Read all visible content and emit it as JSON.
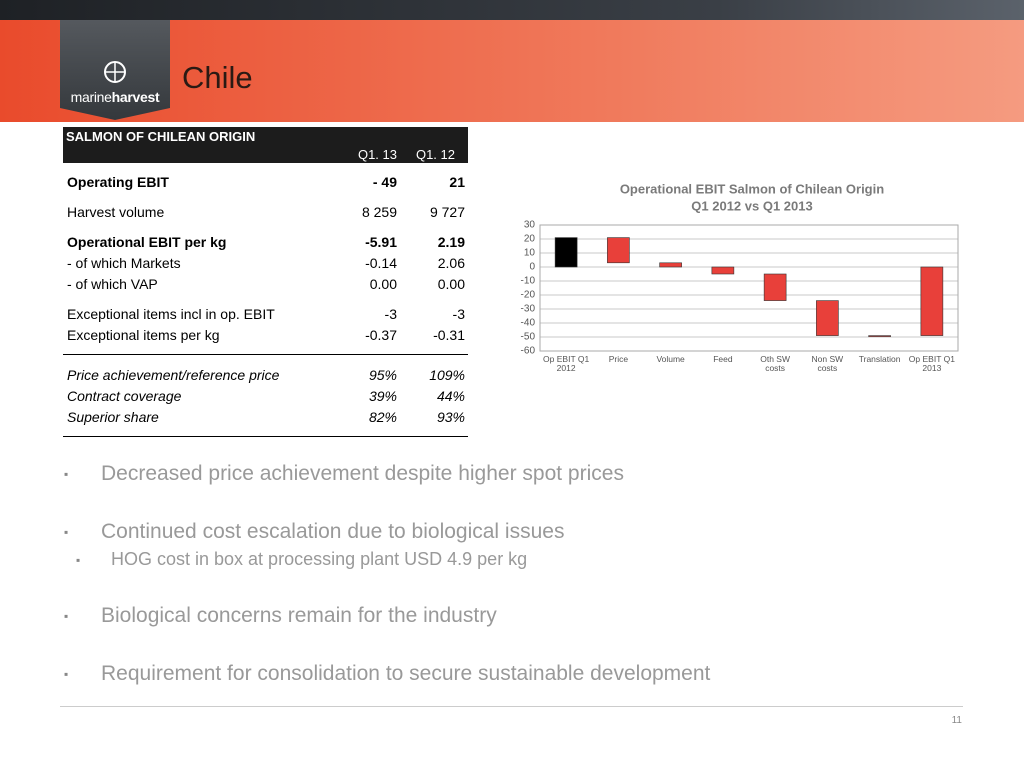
{
  "header": {
    "title": "Chile",
    "logo": [
      "marine",
      "harvest"
    ]
  },
  "table": {
    "title": "SALMON OF CHILEAN ORIGIN",
    "columns": [
      "Q1. 13",
      "Q1. 12"
    ],
    "sections": [
      {
        "rows": [
          {
            "label": "Operating EBIT",
            "values": [
              "-  49",
              "21"
            ],
            "bold": true
          }
        ]
      },
      {
        "rows": [
          {
            "label": "Harvest volume",
            "values": [
              "8 259",
              "9 727"
            ]
          }
        ]
      },
      {
        "rows": [
          {
            "label": "Operational EBIT per kg",
            "values": [
              "-5.91",
              "2.19"
            ],
            "bold": true
          },
          {
            "label": "- of which Markets",
            "values": [
              "-0.14",
              "2.06"
            ]
          },
          {
            "label": "- of which VAP",
            "values": [
              "0.00",
              "0.00"
            ]
          }
        ]
      },
      {
        "rows": [
          {
            "label": "Exceptional items incl in op. EBIT",
            "values": [
              "-3",
              "-3"
            ]
          },
          {
            "label": "Exceptional items per kg",
            "values": [
              "-0.37",
              "-0.31"
            ]
          }
        ]
      },
      {
        "rule": true,
        "italic": true,
        "rows": [
          {
            "label": "Price achievement/reference price",
            "values": [
              "95%",
              "109%"
            ]
          },
          {
            "label": "Contract coverage",
            "values": [
              "39%",
              "44%"
            ]
          },
          {
            "label": "Superior share",
            "values": [
              "82%",
              "93%"
            ]
          }
        ]
      }
    ]
  },
  "chart_data": {
    "type": "waterfall",
    "title": [
      "Operational EBIT Salmon of Chilean Origin",
      "Q1 2012 vs Q1 2013"
    ],
    "categories": [
      "Op EBIT Q1 2012",
      "Price",
      "Volume",
      "Feed",
      "Oth SW costs",
      "Non SW costs",
      "Translation",
      "Op EBIT Q1 2013"
    ],
    "values": [
      21,
      -18,
      -3,
      -5,
      -19,
      -25,
      0,
      -49
    ],
    "total": [
      true,
      false,
      false,
      false,
      false,
      false,
      false,
      true
    ],
    "colors": [
      "#000000",
      "#e8403a",
      "#e8403a",
      "#e8403a",
      "#e8403a",
      "#e8403a",
      "#e8403a",
      "#e8403a"
    ],
    "ylim": [
      -60,
      30
    ],
    "yticks": [
      30,
      20,
      10,
      0,
      -10,
      -20,
      -30,
      -40,
      -50,
      -60
    ],
    "grid": true
  },
  "bullets": [
    {
      "text": "Decreased price achievement despite higher spot prices",
      "level": 1
    },
    {
      "text": "Continued cost escalation due to biological issues",
      "level": 1
    },
    {
      "text": "HOG cost in box at processing plant USD 4.9 per kg",
      "level": 2
    },
    {
      "text": "Biological concerns remain for the industry",
      "level": 1
    },
    {
      "text": "Requirement for consolidation to secure sustainable development",
      "level": 1
    }
  ],
  "page_number": "11"
}
